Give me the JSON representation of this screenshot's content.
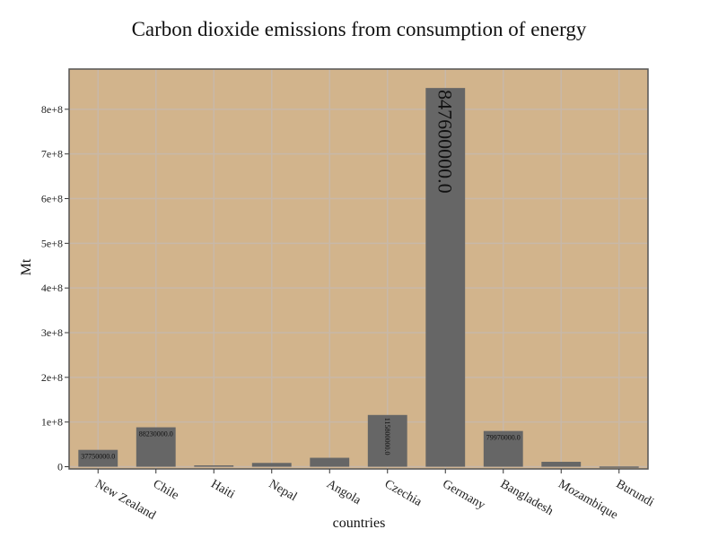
{
  "chart_data": {
    "type": "bar",
    "title": "Carbon dioxide emissions from consumption of energy",
    "xlabel": "countries",
    "ylabel": "Mt",
    "categories": [
      "New Zealand",
      "Chile",
      "Haiti",
      "Nepal",
      "Angola",
      "Czechia",
      "Germany",
      "Bangladesh",
      "Mozambique",
      "Burundi"
    ],
    "values": [
      37750000.0,
      88230000.0,
      3000000.0,
      8500000.0,
      20000000.0,
      115800000.0,
      847600000.0,
      79970000.0,
      11000000.0,
      500000.0
    ],
    "data_labels": [
      "37750000.0",
      "88230000.0",
      "",
      "",
      "",
      "115800000.0",
      "847600000.0",
      "79970000.0",
      "",
      ""
    ],
    "ylim": [
      -5000000,
      890000000
    ],
    "yticks": [
      0,
      100000000,
      200000000,
      300000000,
      400000000,
      500000000,
      600000000,
      700000000,
      800000000
    ],
    "ytick_labels": [
      "0",
      "1e+8",
      "2e+8",
      "3e+8",
      "4e+8",
      "5e+8",
      "6e+8",
      "7e+8",
      "8e+8"
    ],
    "grid": true,
    "colors": {
      "plot_background": "#d2b48c",
      "bar": "#666666",
      "grid": "#c8b8a8",
      "frame": "#555555"
    }
  }
}
